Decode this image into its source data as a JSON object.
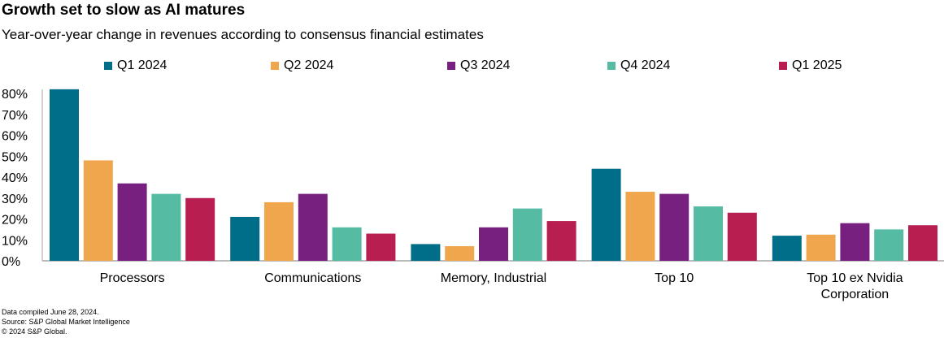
{
  "title": "Growth set to slow as AI matures",
  "subtitle": "Year-over-year change in revenues according to consensus financial estimates",
  "notes": [
    "Data compiled June 28, 2024.",
    "Source: S&P Global Market Intelligence",
    "© 2024 S&P Global."
  ],
  "chart_data": {
    "type": "bar",
    "title": "Growth set to slow as AI matures",
    "categories": [
      "Processors",
      "Communications",
      "Memory, Industrial",
      "Top 10",
      "Top 10 ex Nvidia Corporation"
    ],
    "category_lines": [
      [
        "Processors"
      ],
      [
        "Communications"
      ],
      [
        "Memory, Industrial"
      ],
      [
        "Top 10"
      ],
      [
        "Top 10 ex Nvidia",
        "Corporation"
      ]
    ],
    "series": [
      {
        "name": "Q1 2024",
        "color": "#006e89",
        "values": [
          82,
          21,
          8,
          44,
          12
        ]
      },
      {
        "name": "Q2 2024",
        "color": "#f0a64d",
        "values": [
          48,
          28,
          7,
          33,
          12.5
        ]
      },
      {
        "name": "Q3 2024",
        "color": "#782080",
        "values": [
          37,
          32,
          16,
          32,
          18
        ]
      },
      {
        "name": "Q4 2024",
        "color": "#55bba3",
        "values": [
          32,
          16,
          25,
          26,
          15
        ]
      },
      {
        "name": "Q1 2025",
        "color": "#b81f50",
        "values": [
          30,
          13,
          19,
          23,
          17
        ]
      }
    ],
    "ylim": [
      0,
      80
    ],
    "yticks": [
      "0%",
      "10%",
      "20%",
      "30%",
      "40%",
      "50%",
      "60%",
      "70%",
      "80%"
    ],
    "ytick_values": [
      0,
      10,
      20,
      30,
      40,
      50,
      60,
      70,
      80
    ],
    "legend": "top",
    "grid": false,
    "xlabel": "",
    "ylabel": ""
  }
}
